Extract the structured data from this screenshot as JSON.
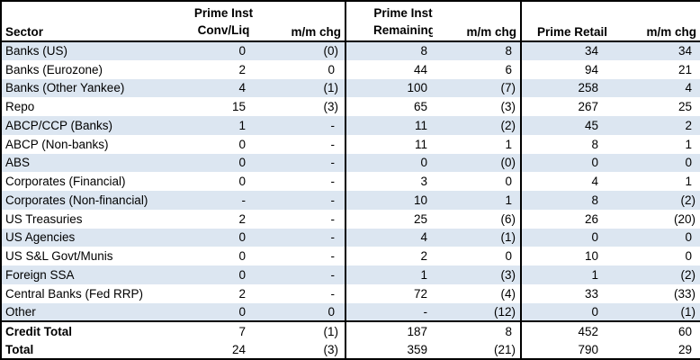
{
  "colors": {
    "border": "#000000",
    "stripe": "#dce6f1",
    "text": "#000000",
    "background": "#ffffff"
  },
  "table": {
    "header": {
      "sector": "Sector",
      "groups": [
        {
          "top": "Prime Inst",
          "value": "Conv/Liq",
          "chg": "m/m chg"
        },
        {
          "top": "Prime Inst",
          "value": "Remaining",
          "chg": "m/m chg"
        },
        {
          "top": "",
          "value": "Prime Retail",
          "chg": "m/m chg"
        }
      ]
    },
    "rows": [
      {
        "sector": "Banks (US)",
        "values": [
          "0",
          "(0)",
          "8",
          "8",
          "34",
          "34"
        ]
      },
      {
        "sector": "Banks (Eurozone)",
        "values": [
          "2",
          "0",
          "44",
          "6",
          "94",
          "21"
        ]
      },
      {
        "sector": "Banks (Other Yankee)",
        "values": [
          "4",
          "(1)",
          "100",
          "(7)",
          "258",
          "4"
        ]
      },
      {
        "sector": "Repo",
        "values": [
          "15",
          "(3)",
          "65",
          "(3)",
          "267",
          "25"
        ]
      },
      {
        "sector": "ABCP/CCP (Banks)",
        "values": [
          "1",
          "-",
          "11",
          "(2)",
          "45",
          "2"
        ]
      },
      {
        "sector": "ABCP (Non-banks)",
        "values": [
          "0",
          "-",
          "11",
          "1",
          "8",
          "1"
        ]
      },
      {
        "sector": "ABS",
        "values": [
          "0",
          "-",
          "0",
          "(0)",
          "0",
          "0"
        ]
      },
      {
        "sector": "Corporates (Financial)",
        "values": [
          "0",
          "-",
          "3",
          "0",
          "4",
          "1"
        ]
      },
      {
        "sector": "Corporates (Non-financial)",
        "values": [
          "-",
          "-",
          "10",
          "1",
          "8",
          "(2)"
        ]
      },
      {
        "sector": "US Treasuries",
        "values": [
          "2",
          "-",
          "25",
          "(6)",
          "26",
          "(20)"
        ]
      },
      {
        "sector": "US Agencies",
        "values": [
          "0",
          "-",
          "4",
          "(1)",
          "0",
          "0"
        ]
      },
      {
        "sector": "US S&L Govt/Munis",
        "values": [
          "0",
          "-",
          "2",
          "0",
          "10",
          "0"
        ]
      },
      {
        "sector": "Foreign SSA",
        "values": [
          "0",
          "-",
          "1",
          "(3)",
          "1",
          "(2)"
        ]
      },
      {
        "sector": "Central Banks (Fed RRP)",
        "values": [
          "2",
          "-",
          "72",
          "(4)",
          "33",
          "(33)"
        ]
      },
      {
        "sector": "Other",
        "values": [
          "0",
          "0",
          "-",
          "(12)",
          "0",
          "(1)"
        ]
      }
    ],
    "totals": [
      {
        "sector": "Credit Total",
        "values": [
          "7",
          "(1)",
          "187",
          "8",
          "452",
          "60"
        ]
      },
      {
        "sector": "Total",
        "values": [
          "24",
          "(3)",
          "359",
          "(21)",
          "790",
          "29"
        ]
      }
    ]
  }
}
